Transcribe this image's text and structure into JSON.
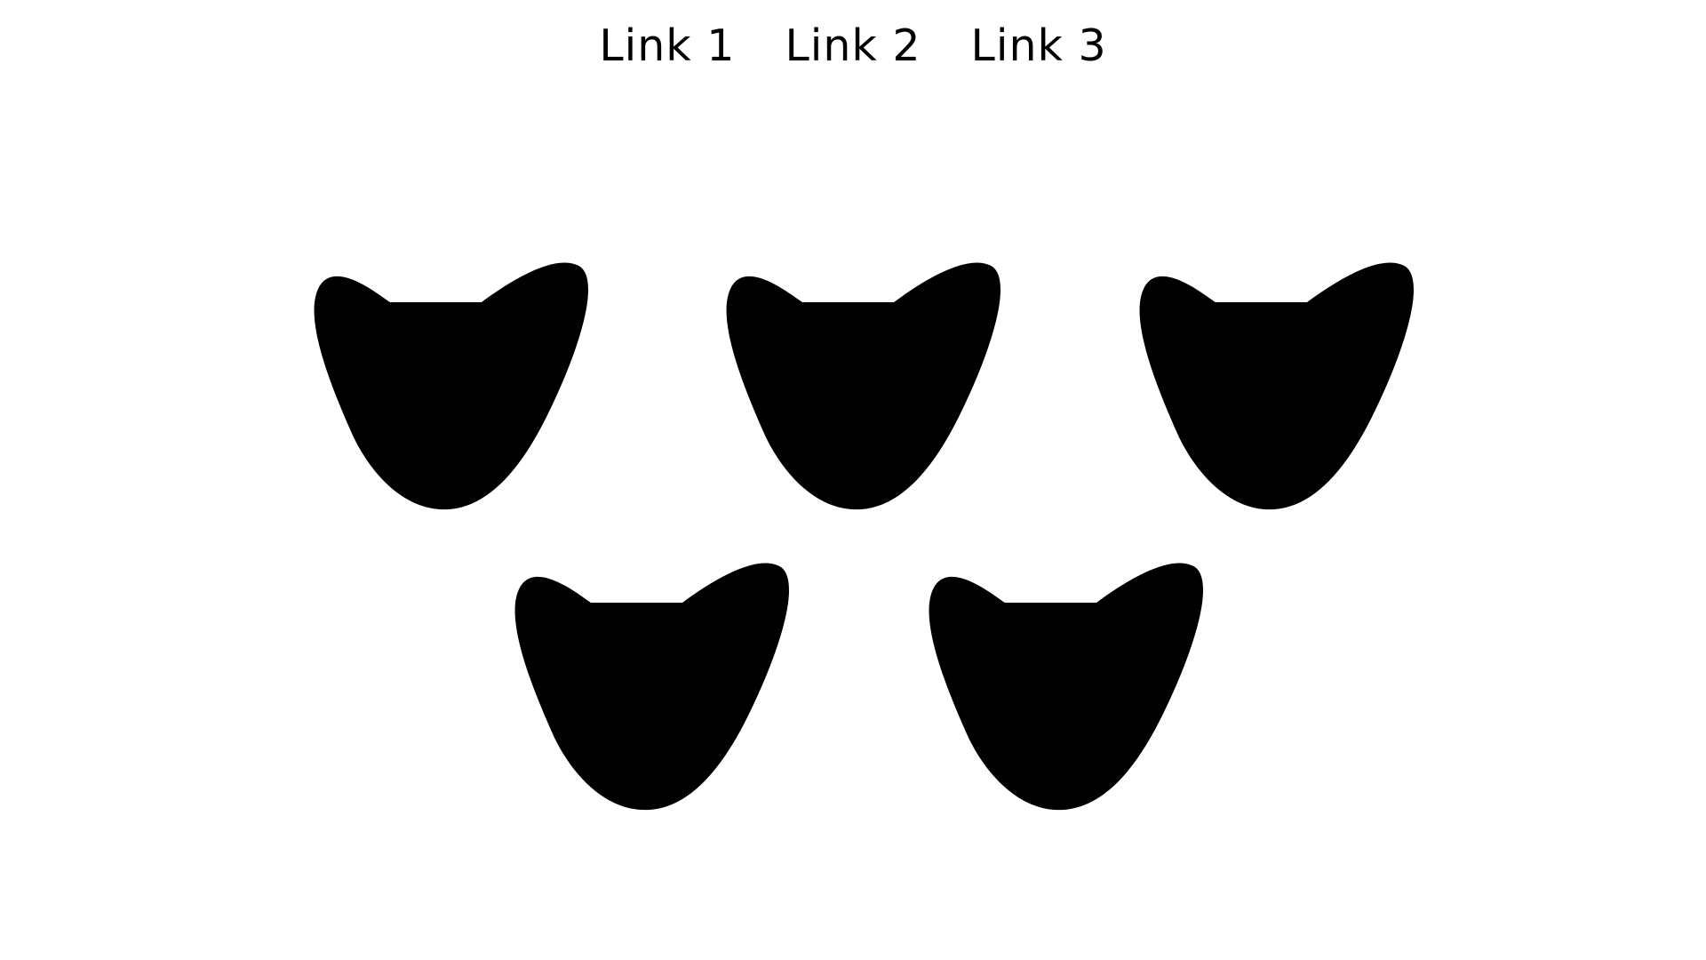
{
  "nav": {
    "links": [
      {
        "label": "Link 1"
      },
      {
        "label": "Link 2"
      },
      {
        "label": "Link 3"
      }
    ]
  },
  "shapes": {
    "count": 5,
    "color": "#000000",
    "icon": "cat-head-silhouette-icon"
  }
}
